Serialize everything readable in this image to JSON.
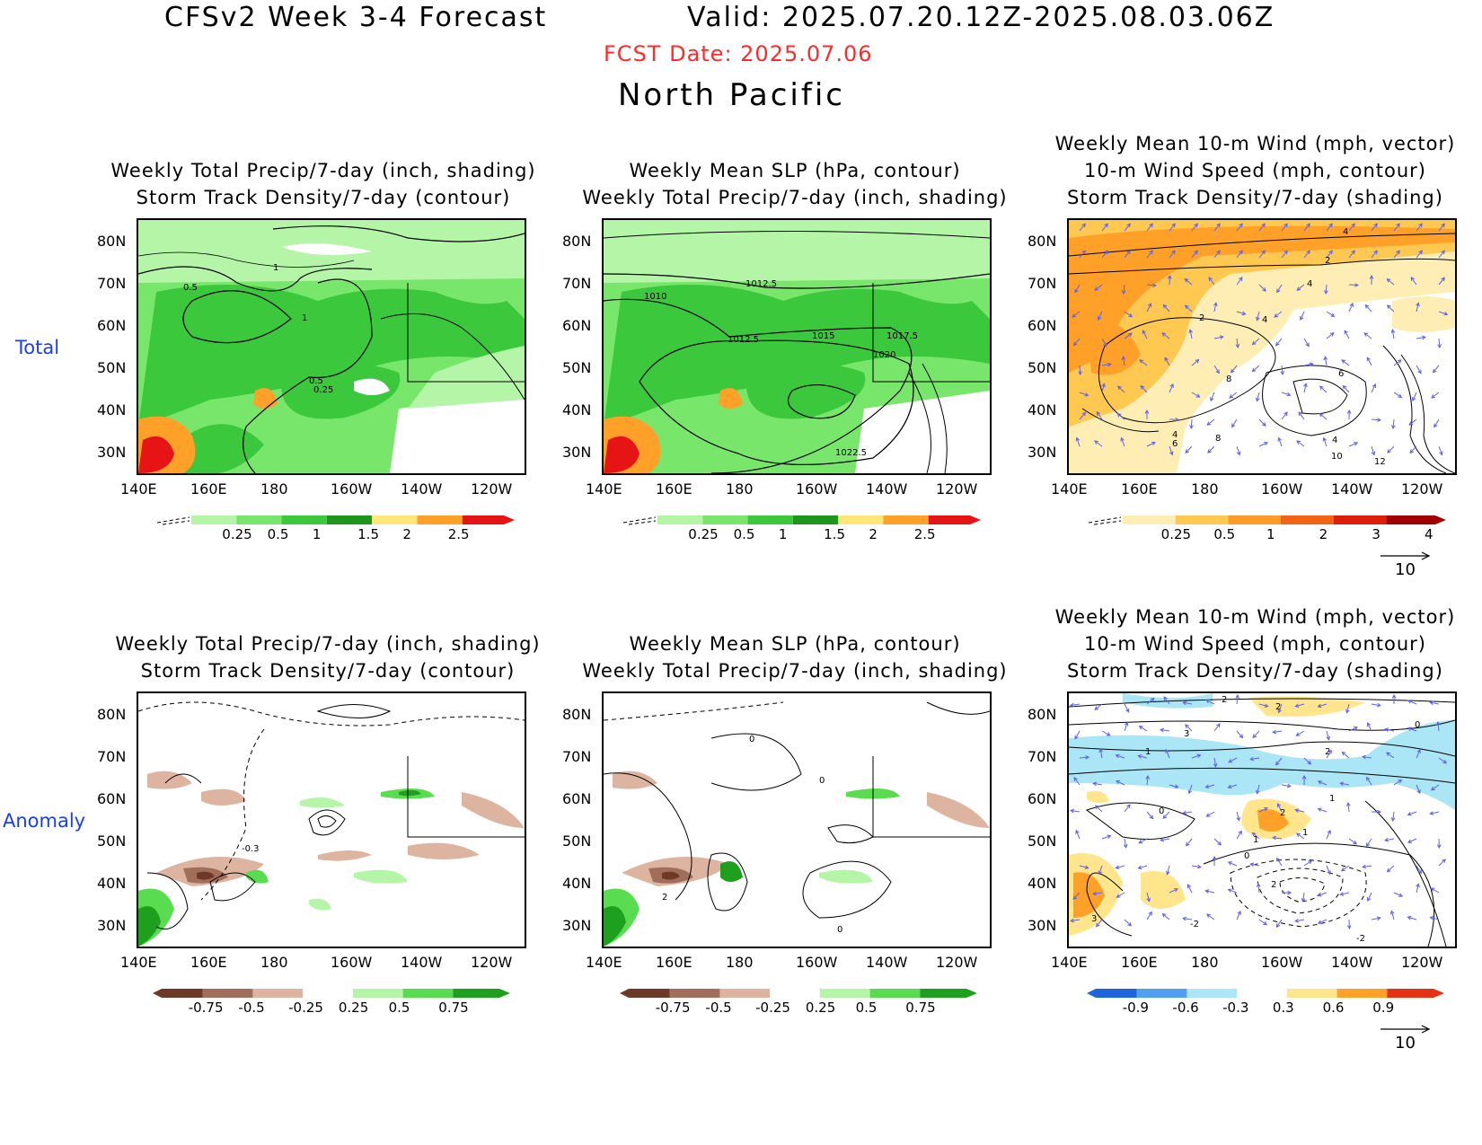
{
  "header": {
    "title": "CFSv2 Week 3-4 Forecast",
    "valid": "Valid: 2025.07.20.12Z-2025.08.03.06Z",
    "fcst_date": "FCST Date: 2025.07.06",
    "region": "North Pacific"
  },
  "rows": {
    "total": "Total",
    "anomaly": "Anomaly"
  },
  "titles": {
    "p1": [
      "Weekly Total Precip/7-day (inch, shading)",
      "Storm Track Density/7-day (contour)"
    ],
    "p2": [
      "Weekly Mean SLP (hPa, contour)",
      "Weekly Total Precip/7-day (inch, shading)"
    ],
    "p3": [
      "Weekly Mean 10-m Wind (mph, vector)",
      "10-m Wind Speed (mph, contour)",
      "Storm Track Density/7-day (shading)"
    ]
  },
  "axes": {
    "lat": [
      "80N",
      "70N",
      "60N",
      "50N",
      "40N",
      "30N"
    ],
    "lon": [
      "140E",
      "160E",
      "180",
      "160W",
      "140W",
      "120W"
    ]
  },
  "colorbars": {
    "precip_total": {
      "labels": [
        "0.25",
        "0.5",
        "1",
        "1.5",
        "2",
        "2.5"
      ],
      "colors": [
        "#b4f5a8",
        "#78e66a",
        "#3cc83c",
        "#1e961e",
        "#ffe678",
        "#ffa028",
        "#e61414"
      ]
    },
    "track_total": {
      "labels": [
        "0.25",
        "0.5",
        "1",
        "2",
        "3",
        "4"
      ],
      "colors": [
        "#ffeeb4",
        "#ffc850",
        "#ff9b28",
        "#f06414",
        "#dc1e0a",
        "#a00000"
      ]
    },
    "precip_anom": {
      "labels": [
        "-0.75",
        "-0.5",
        "-0.25",
        "0.25",
        "0.5",
        "0.75"
      ],
      "colors": [
        "#6e3a28",
        "#a06e5a",
        "#dcb4a0",
        "#ffffff",
        "#b4f5a8",
        "#5adc50",
        "#1ea01e"
      ]
    },
    "track_anom": {
      "labels": [
        "-0.9",
        "-0.6",
        "-0.3",
        "0.3",
        "0.6",
        "0.9"
      ],
      "colors": [
        "#1e64dc",
        "#50a0f0",
        "#aae6f5",
        "#ffffff",
        "#ffe68c",
        "#ffa028",
        "#e63214"
      ]
    }
  },
  "vector_ref": "10",
  "contour_labels": {
    "p1_total": [
      "1",
      "0.5",
      "1",
      "0.5",
      "0.25"
    ],
    "p2_total": [
      "1012.5",
      "1010",
      "1012.5",
      "1015",
      "1017.5",
      "1020",
      "1022.5"
    ],
    "p3_total": [
      "4",
      "2",
      "4",
      "2",
      "4",
      "8",
      "6",
      "4",
      "6",
      "8",
      "4",
      "10",
      "12"
    ],
    "p1_anom": [
      "-0.3"
    ],
    "p2_anom": [
      "0",
      "0",
      "2",
      "0"
    ],
    "p3_anom": [
      "2",
      "2",
      "3",
      "1",
      "2",
      "0",
      "1",
      "0",
      "2",
      "1",
      "1",
      "0",
      "2",
      "3",
      "-2",
      "-2"
    ]
  }
}
